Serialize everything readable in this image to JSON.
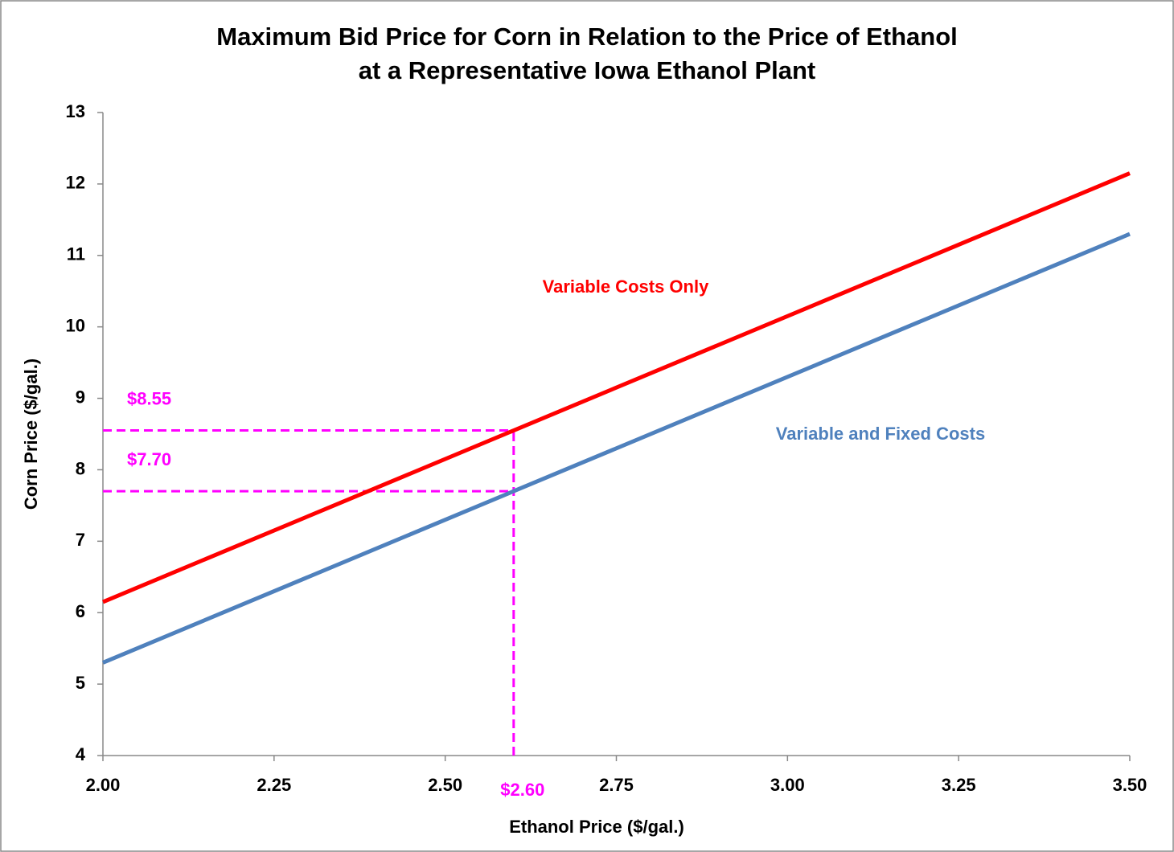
{
  "chart_data": {
    "type": "line",
    "title": [
      "Maximum Bid Price for Corn in Relation to the Price of Ethanol",
      "at a Representative Iowa Ethanol Plant"
    ],
    "x_label": "Ethanol Price ($/gal.)",
    "y_label": "Corn Price ($/gal.)",
    "x": [
      2.0,
      2.6,
      3.5
    ],
    "series": [
      {
        "name": "Variable Costs Only",
        "color": "#ff0000",
        "values": [
          6.15,
          8.55,
          12.15
        ]
      },
      {
        "name": "Variable and Fixed Costs",
        "color": "#4f81bd",
        "values": [
          5.3,
          7.7,
          11.3
        ]
      }
    ],
    "xlim": [
      2.0,
      3.5
    ],
    "xticks": [
      {
        "value": 2.0,
        "label": "2.00"
      },
      {
        "value": 2.25,
        "label": "2.25"
      },
      {
        "value": 2.5,
        "label": "2.50"
      },
      {
        "value": 2.75,
        "label": "2.75"
      },
      {
        "value": 3.0,
        "label": "3.00"
      },
      {
        "value": 3.25,
        "label": "3.25"
      },
      {
        "value": 3.5,
        "label": "3.50"
      }
    ],
    "ylim": [
      4,
      13
    ],
    "yticks": [
      4,
      5,
      6,
      7,
      8,
      9,
      10,
      11,
      12,
      13
    ],
    "grid": false,
    "annotations": [
      {
        "text": "$8.55",
        "y": 8.55
      },
      {
        "text": "$7.70",
        "y": 7.7
      },
      {
        "text": "$2.60",
        "x": 2.6
      }
    ],
    "annotation_color": "#ff00ff"
  }
}
